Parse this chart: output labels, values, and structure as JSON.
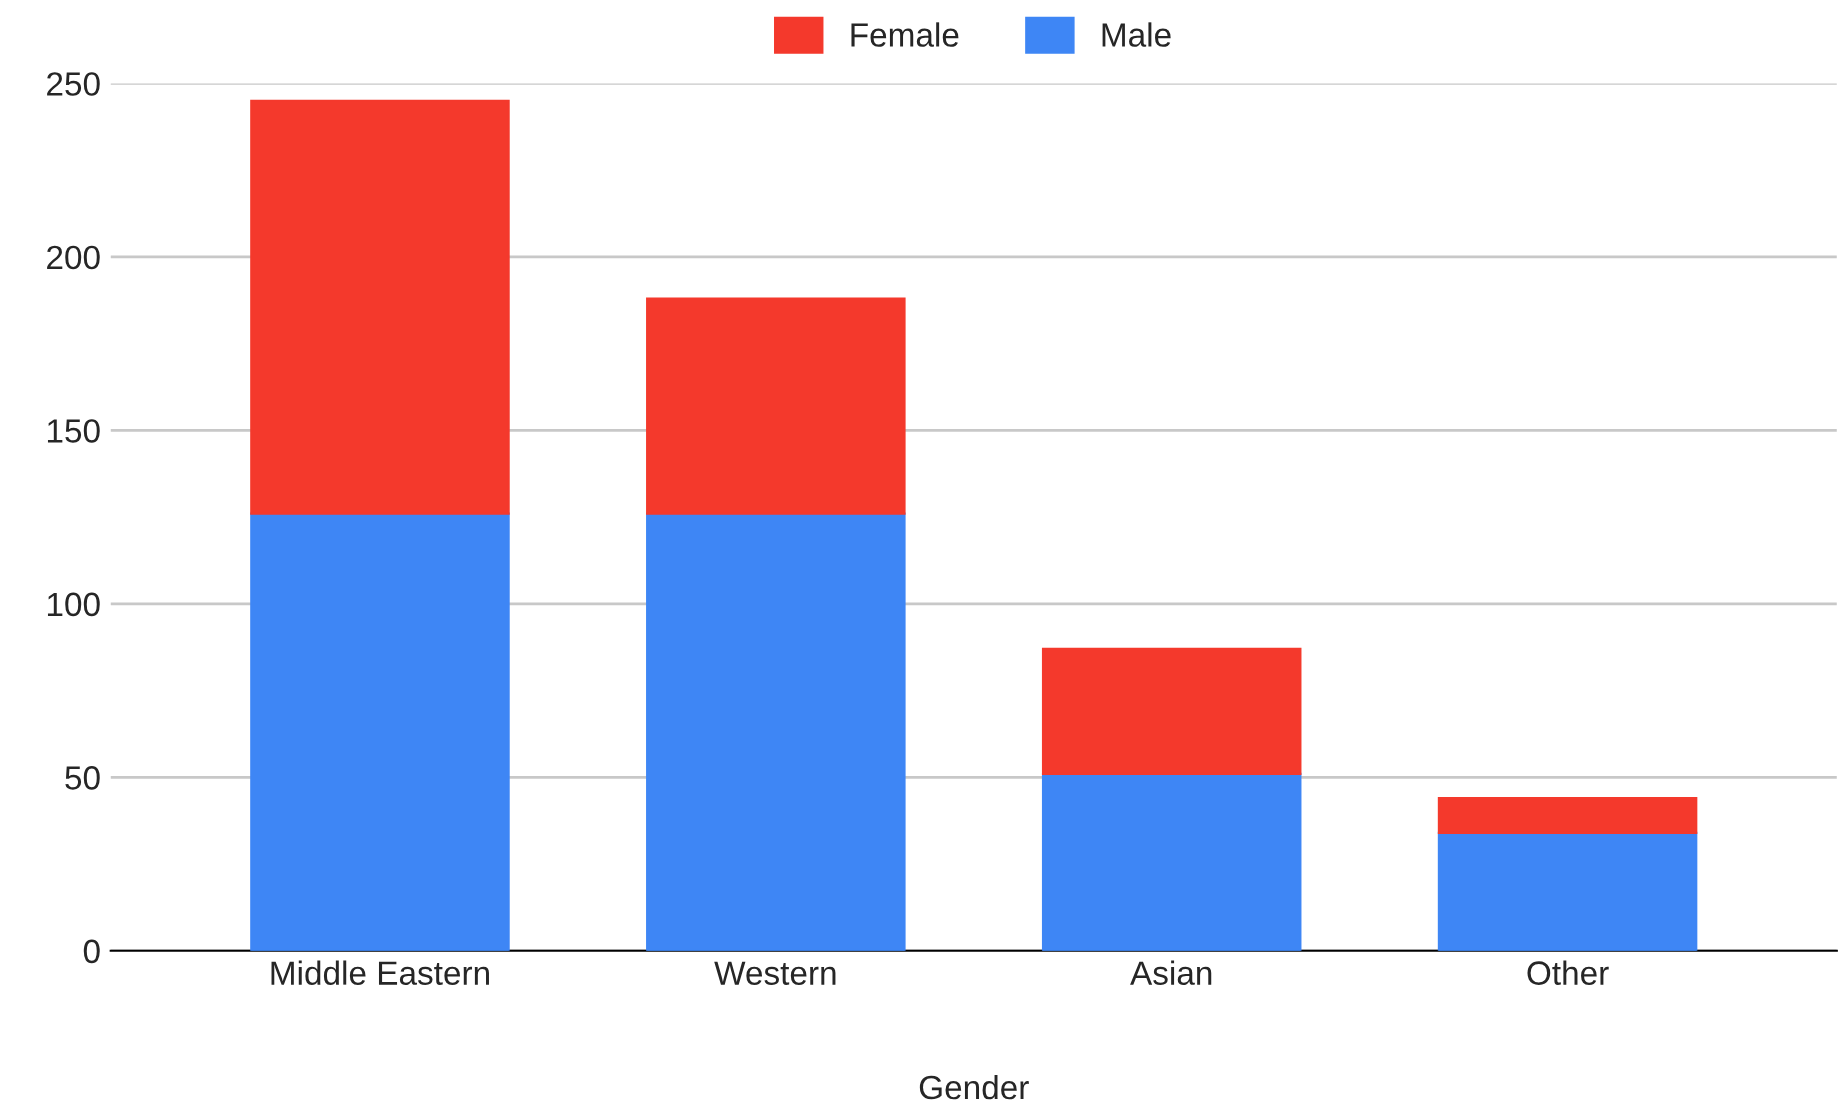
{
  "chart_data": {
    "type": "bar",
    "stacked": true,
    "xlabel": "Gender",
    "categories": [
      "Middle Eastern",
      "Western",
      "Asian",
      "Other"
    ],
    "series": [
      {
        "name": "Male",
        "color": "#3e86f5",
        "values": [
          126,
          126,
          51,
          34
        ]
      },
      {
        "name": "Female",
        "color": "#f4392c",
        "values": [
          119,
          62,
          36,
          10
        ]
      }
    ],
    "ylim": [
      0,
      250
    ],
    "yticks": [
      0,
      50,
      100,
      150,
      200,
      250
    ],
    "grid": "y",
    "legend": "top"
  }
}
